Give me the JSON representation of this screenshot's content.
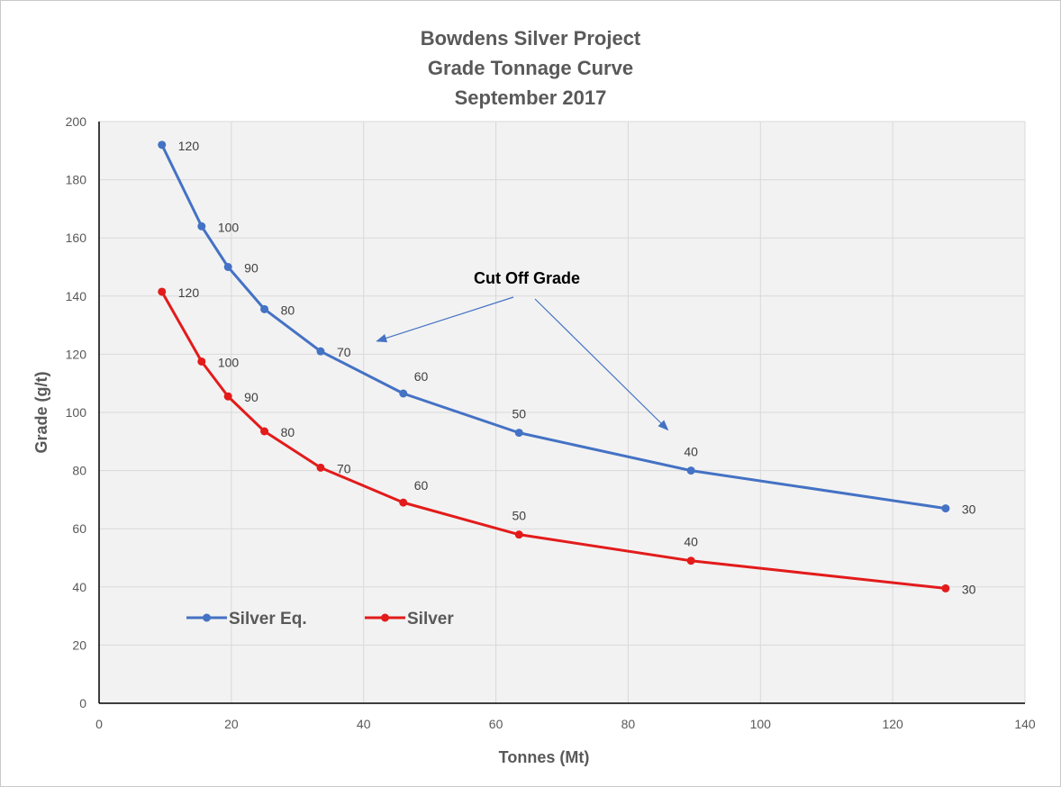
{
  "chart_data": {
    "type": "line",
    "title": [
      "Bowdens Silver Project",
      "Grade Tonnage Curve",
      "September 2017"
    ],
    "xlabel": "Tonnes (Mt)",
    "ylabel": "Grade (g/t)",
    "xlim": [
      0,
      140
    ],
    "ylim": [
      0,
      200
    ],
    "xticks": [
      0,
      20,
      40,
      60,
      80,
      100,
      120,
      140
    ],
    "yticks": [
      0,
      20,
      40,
      60,
      80,
      100,
      120,
      140,
      160,
      180,
      200
    ],
    "grid": true,
    "legend_position": "bottom-left",
    "series": [
      {
        "name": "Silver Eq.",
        "color": "#4472c4",
        "x": [
          9.5,
          15.5,
          19.5,
          25,
          33.5,
          46,
          63.5,
          89.5,
          128
        ],
        "y": [
          192,
          164,
          150,
          135.5,
          121,
          106.5,
          93,
          80,
          67
        ],
        "point_labels": [
          "120",
          "100",
          "90",
          "80",
          "70",
          "60",
          "50",
          "40",
          "30"
        ]
      },
      {
        "name": "Silver",
        "color": "#e31b1b",
        "x": [
          9.5,
          15.5,
          19.5,
          25,
          33.5,
          46,
          63.5,
          89.5,
          128
        ],
        "y": [
          141.5,
          117.5,
          105.5,
          93.5,
          81,
          69,
          58,
          49,
          39.5
        ],
        "point_labels": [
          "120",
          "100",
          "90",
          "80",
          "70",
          "60",
          "50",
          "40",
          "30"
        ]
      }
    ],
    "annotation": {
      "text": "Cut Off Grade",
      "arrow_targets": [
        [
          42,
          124.5
        ],
        [
          86,
          94
        ]
      ]
    }
  }
}
